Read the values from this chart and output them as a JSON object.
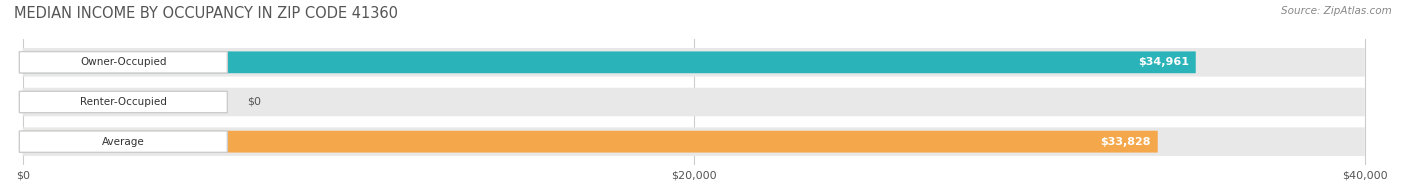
{
  "title": "MEDIAN INCOME BY OCCUPANCY IN ZIP CODE 41360",
  "source": "Source: ZipAtlas.com",
  "categories": [
    "Owner-Occupied",
    "Renter-Occupied",
    "Average"
  ],
  "values": [
    34961,
    0,
    33828
  ],
  "bar_colors": [
    "#2ab3b8",
    "#b8a0c8",
    "#f5a84b"
  ],
  "label_values": [
    "$34,961",
    "$0",
    "$33,828"
  ],
  "bar_bg_color": "#f0f0f0",
  "xlim": [
    0,
    40000
  ],
  "xticks": [
    0,
    20000,
    40000
  ],
  "xtick_labels": [
    "$0",
    "$20,000",
    "$40,000"
  ],
  "figsize": [
    14.06,
    1.96
  ],
  "dpi": 100,
  "background_color": "#ffffff",
  "grid_color": "#cccccc"
}
